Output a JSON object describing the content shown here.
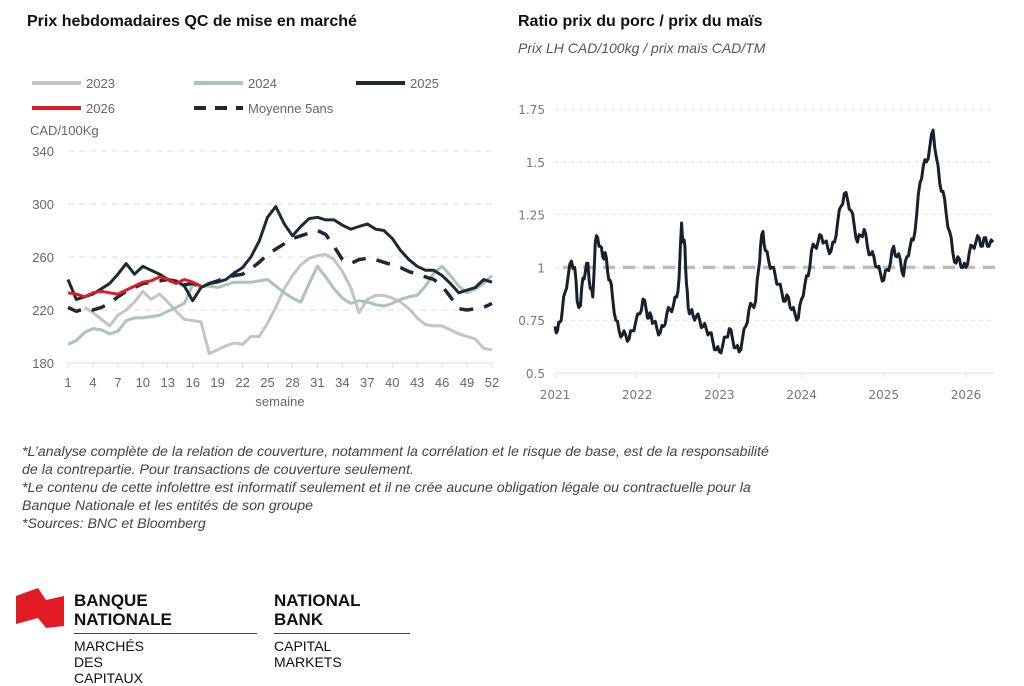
{
  "left_chart": {
    "title": "Prix hebdomadaires QC de mise en marché",
    "unit_label": "CAD/100Kg"
  },
  "right_chart": {
    "title": "Ratio prix du porc / prix du maïs",
    "subtitle": "Prix LH CAD/100kg / prix maïs CAD/TM"
  },
  "chart_data": [
    {
      "type": "line",
      "title": "Prix hebdomadaires QC de mise en marché",
      "xlabel": "semaine",
      "ylabel": "CAD/100Kg",
      "ylim": [
        180,
        340
      ],
      "xlim": [
        1,
        52
      ],
      "yticks": [
        "340",
        "300",
        "260",
        "220",
        "180"
      ],
      "ytick_values": [
        340,
        300,
        260,
        220,
        180
      ],
      "xticks": [
        "1",
        "4",
        "7",
        "10",
        "13",
        "16",
        "19",
        "22",
        "25",
        "28",
        "31",
        "34",
        "37",
        "40",
        "43",
        "46",
        "49",
        "52"
      ],
      "xtick_values": [
        1,
        4,
        7,
        10,
        13,
        16,
        19,
        22,
        25,
        28,
        31,
        34,
        37,
        40,
        43,
        46,
        49,
        52
      ],
      "grid": "horizontal dashed",
      "legend_position": "top",
      "series": [
        {
          "name": "2023",
          "color": "#c4c4c4",
          "style": "solid",
          "weeks": [
            3,
            4,
            5,
            6,
            7,
            8,
            9,
            10,
            11,
            12,
            13,
            14,
            15,
            16,
            17,
            18,
            19,
            20,
            21,
            22,
            23,
            24,
            25,
            26,
            27,
            28,
            29,
            30,
            31,
            32,
            33,
            34,
            35,
            36,
            37,
            38,
            39,
            40,
            41,
            42,
            43,
            44,
            45,
            46,
            47,
            48,
            49,
            50,
            51,
            52
          ],
          "values": [
            222,
            218,
            213,
            208,
            216,
            220,
            226,
            234,
            228,
            232,
            226,
            219,
            213,
            212,
            211,
            187,
            190,
            193,
            195,
            194,
            200,
            200,
            210,
            222,
            236,
            246,
            254,
            259,
            261,
            262,
            258,
            249,
            237,
            218,
            228,
            231,
            231,
            229,
            226,
            221,
            214,
            209,
            208,
            208,
            205,
            202,
            200,
            198,
            191,
            190
          ]
        },
        {
          "name": "2024",
          "color": "#a8c5b6",
          "style": "solid",
          "weeks": [
            1,
            2,
            3,
            4,
            5,
            6,
            7,
            8,
            9,
            10,
            11,
            12,
            13,
            14,
            15,
            16,
            17,
            18,
            19,
            20,
            21,
            22,
            23,
            24,
            25,
            26,
            27,
            28,
            29,
            30,
            31,
            32,
            33,
            34,
            35,
            36,
            37,
            38,
            39,
            40,
            41,
            42,
            43,
            44,
            45,
            46,
            47,
            48,
            49,
            50,
            51,
            52
          ],
          "values": [
            194,
            197,
            203,
            206,
            205,
            202,
            204,
            212,
            214,
            214,
            215,
            216,
            219,
            222,
            225,
            239,
            238,
            238,
            237,
            239,
            241,
            241,
            241,
            242,
            243,
            238,
            233,
            229,
            226,
            240,
            253,
            245,
            236,
            229,
            225,
            227,
            226,
            224,
            223,
            225,
            228,
            230,
            231,
            238,
            248,
            253,
            246,
            238,
            233,
            236,
            240,
            246
          ]
        },
        {
          "name": "2025",
          "color": "#1b2a36",
          "style": "solid",
          "weeks": [
            1,
            2,
            3,
            4,
            5,
            6,
            7,
            8,
            9,
            10,
            11,
            12,
            13,
            14,
            15,
            16,
            17,
            18,
            19,
            20,
            21,
            22,
            23,
            24,
            25,
            26,
            27,
            28,
            29,
            30,
            31,
            32,
            33,
            34,
            35,
            36,
            37,
            38,
            39,
            40,
            41,
            42,
            43,
            44,
            45,
            46,
            47,
            48,
            49,
            50,
            51,
            52
          ],
          "values": [
            243,
            228,
            230,
            232,
            236,
            240,
            247,
            255,
            247,
            253,
            250,
            247,
            243,
            242,
            238,
            227,
            237,
            240,
            241,
            243,
            248,
            252,
            260,
            272,
            290,
            298,
            285,
            276,
            283,
            289,
            290,
            288,
            288,
            284,
            281,
            283,
            285,
            281,
            280,
            274,
            265,
            258,
            253,
            250,
            250,
            246,
            240,
            233,
            235,
            237,
            243,
            241
          ]
        },
        {
          "name": "2026",
          "color": "#e01b24",
          "style": "solid",
          "weeks": [
            1,
            2,
            3,
            4,
            5,
            6,
            7,
            8,
            9,
            10,
            11,
            12,
            13,
            14,
            15,
            16,
            17
          ],
          "values": [
            233,
            232,
            230,
            233,
            234,
            233,
            232,
            235,
            238,
            241,
            242,
            245,
            243,
            240,
            243,
            241,
            238
          ]
        },
        {
          "name": "Moyenne 5ans",
          "color": "#1b2a36",
          "style": "dashed",
          "weeks": [
            1,
            2,
            3,
            4,
            5,
            6,
            7,
            8,
            9,
            10,
            11,
            12,
            13,
            14,
            15,
            16,
            17,
            18,
            19,
            20,
            21,
            22,
            23,
            24,
            25,
            26,
            27,
            28,
            29,
            30,
            31,
            32,
            33,
            34,
            35,
            36,
            37,
            38,
            39,
            40,
            41,
            42,
            43,
            44,
            45,
            46,
            47,
            48,
            49,
            50,
            51,
            52
          ],
          "values": [
            222,
            219,
            221,
            220,
            222,
            225,
            230,
            234,
            237,
            240,
            241,
            242,
            243,
            240,
            239,
            240,
            238,
            240,
            242,
            245,
            246,
            247,
            251,
            256,
            262,
            266,
            270,
            274,
            276,
            278,
            280,
            277,
            268,
            258,
            255,
            258,
            259,
            258,
            256,
            254,
            252,
            249,
            247,
            245,
            243,
            238,
            230,
            221,
            220,
            221,
            222,
            225
          ]
        }
      ]
    },
    {
      "type": "line",
      "title": "Ratio prix du porc / prix du maïs",
      "subtitle": "Prix LH CAD/100kg / prix maïs CAD/TM",
      "xlabel": "",
      "ylabel": "",
      "ylim": [
        0.5,
        1.75
      ],
      "xlim": [
        2021.0,
        2026.33
      ],
      "yticks": [
        "1.75",
        "1.5",
        "1.25",
        "1",
        "0.75",
        "0.5"
      ],
      "ytick_values": [
        1.75,
        1.5,
        1.25,
        1.0,
        0.75,
        0.5
      ],
      "xticks": [
        "2021",
        "2022",
        "2023",
        "2024",
        "2025",
        "2026"
      ],
      "xtick_values": [
        2021,
        2022,
        2023,
        2024,
        2025,
        2026
      ],
      "grid": "horizontal dashed",
      "reference_line": {
        "value": 1.0,
        "color": "#bdbdbd",
        "style": "dashed"
      },
      "series": [
        {
          "name": "Ratio",
          "color": "#15222e",
          "x": [
            2021.0,
            2021.03,
            2021.06,
            2021.09,
            2021.12,
            2021.16,
            2021.2,
            2021.24,
            2021.27,
            2021.31,
            2021.34,
            2021.37,
            2021.4,
            2021.43,
            2021.46,
            2021.49,
            2021.52,
            2021.55,
            2021.58,
            2021.61,
            2021.64,
            2021.67,
            2021.7,
            2021.74,
            2021.78,
            2021.82,
            2021.86,
            2021.9,
            2021.94,
            2021.98,
            2022.03,
            2022.07,
            2022.11,
            2022.14,
            2022.17,
            2022.2,
            2022.24,
            2022.28,
            2022.32,
            2022.36,
            2022.4,
            2022.44,
            2022.48,
            2022.51,
            2022.54,
            2022.56,
            2022.58,
            2022.6,
            2022.62,
            2022.65,
            2022.68,
            2022.72,
            2022.76,
            2022.8,
            2022.84,
            2022.88,
            2022.92,
            2022.96,
            2023.0,
            2023.04,
            2023.08,
            2023.12,
            2023.16,
            2023.2,
            2023.24,
            2023.28,
            2023.32,
            2023.36,
            2023.4,
            2023.44,
            2023.48,
            2023.5,
            2023.53,
            2023.56,
            2023.6,
            2023.64,
            2023.68,
            2023.72,
            2023.76,
            2023.8,
            2023.84,
            2023.88,
            2023.92,
            2023.96,
            2024.0,
            2024.04,
            2024.08,
            2024.12,
            2024.16,
            2024.2,
            2024.24,
            2024.28,
            2024.32,
            2024.36,
            2024.4,
            2024.44,
            2024.48,
            2024.52,
            2024.56,
            2024.6,
            2024.64,
            2024.68,
            2024.72,
            2024.76,
            2024.8,
            2024.84,
            2024.88,
            2024.92,
            2024.96,
            2025.0,
            2025.04,
            2025.08,
            2025.12,
            2025.16,
            2025.2,
            2025.24,
            2025.28,
            2025.32,
            2025.36,
            2025.4,
            2025.44,
            2025.48,
            2025.52,
            2025.56,
            2025.6,
            2025.64,
            2025.68,
            2025.72,
            2025.76,
            2025.8,
            2025.84,
            2025.88,
            2025.92,
            2025.96,
            2026.0,
            2026.04,
            2026.08,
            2026.12,
            2026.16,
            2026.2,
            2026.24,
            2026.28,
            2026.33
          ],
          "values": [
            0.72,
            0.7,
            0.74,
            0.8,
            0.88,
            0.96,
            1.03,
            1.0,
            0.84,
            0.82,
            0.95,
            0.98,
            1.02,
            0.9,
            0.86,
            1.12,
            1.14,
            1.1,
            1.05,
            1.07,
            0.98,
            0.94,
            0.86,
            0.75,
            0.7,
            0.68,
            0.68,
            0.66,
            0.7,
            0.74,
            0.78,
            0.85,
            0.8,
            0.76,
            0.77,
            0.74,
            0.71,
            0.69,
            0.72,
            0.78,
            0.8,
            0.82,
            0.86,
            0.95,
            1.21,
            1.12,
            1.1,
            0.92,
            0.81,
            0.79,
            0.77,
            0.77,
            0.75,
            0.72,
            0.71,
            0.69,
            0.65,
            0.61,
            0.6,
            0.63,
            0.67,
            0.71,
            0.66,
            0.62,
            0.6,
            0.66,
            0.72,
            0.8,
            0.82,
            0.84,
            1.0,
            1.1,
            1.17,
            1.08,
            1.03,
            1.0,
            0.96,
            0.92,
            0.88,
            0.84,
            0.86,
            0.8,
            0.78,
            0.76,
            0.85,
            0.92,
            0.96,
            1.08,
            1.1,
            1.12,
            1.15,
            1.12,
            1.09,
            1.08,
            1.12,
            1.22,
            1.29,
            1.35,
            1.32,
            1.27,
            1.2,
            1.12,
            1.15,
            1.18,
            1.1,
            1.06,
            1.05,
            1.0,
            0.97,
            0.94,
            0.99,
            1.02,
            1.1,
            1.05,
            1.04,
            0.96,
            1.05,
            1.1,
            1.13,
            1.25,
            1.4,
            1.48,
            1.5,
            1.57,
            1.65,
            1.52,
            1.4,
            1.36,
            1.25,
            1.17,
            1.07,
            1.02,
            1.04,
            1.0,
            1.0,
            1.07,
            1.1,
            1.12,
            1.14,
            1.1,
            1.14,
            1.1,
            1.12
          ]
        }
      ]
    }
  ],
  "legend": {
    "items": [
      {
        "label": "2023",
        "color": "#c4c4c4",
        "style": "solid"
      },
      {
        "label": "2024",
        "color": "#a8c5b6",
        "style": "solid"
      },
      {
        "label": "2025",
        "color": "#1b2a36",
        "style": "solid"
      },
      {
        "label": "2026",
        "color": "#e01b24",
        "style": "solid"
      },
      {
        "label": "Moyenne 5ans",
        "color": "#1b2a36",
        "style": "dashed"
      }
    ]
  },
  "notes": [
    "*L’analyse complète de la relation de couverture, notamment la corrélation et le risque de base, est de la responsabilité",
    "de la contrepartie. Pour transactions de couverture seulement.",
    "*Le contenu de cette infolettre est informatif seulement et il ne crée aucune obligation légale ou contractuelle pour la",
    "Banque Nationale et les entités de son groupe",
    "*Sources: BNC et Bloomberg"
  ],
  "logo": {
    "fr_line1": "BANQUE",
    "fr_line2": "NATIONALE",
    "fr_sub": "MARCHÉS DES CAPITAUX",
    "en_line1": "NATIONAL",
    "en_line2": "BANK",
    "en_sub": "CAPITAL MARKETS",
    "flag_color": "#e01b24"
  }
}
